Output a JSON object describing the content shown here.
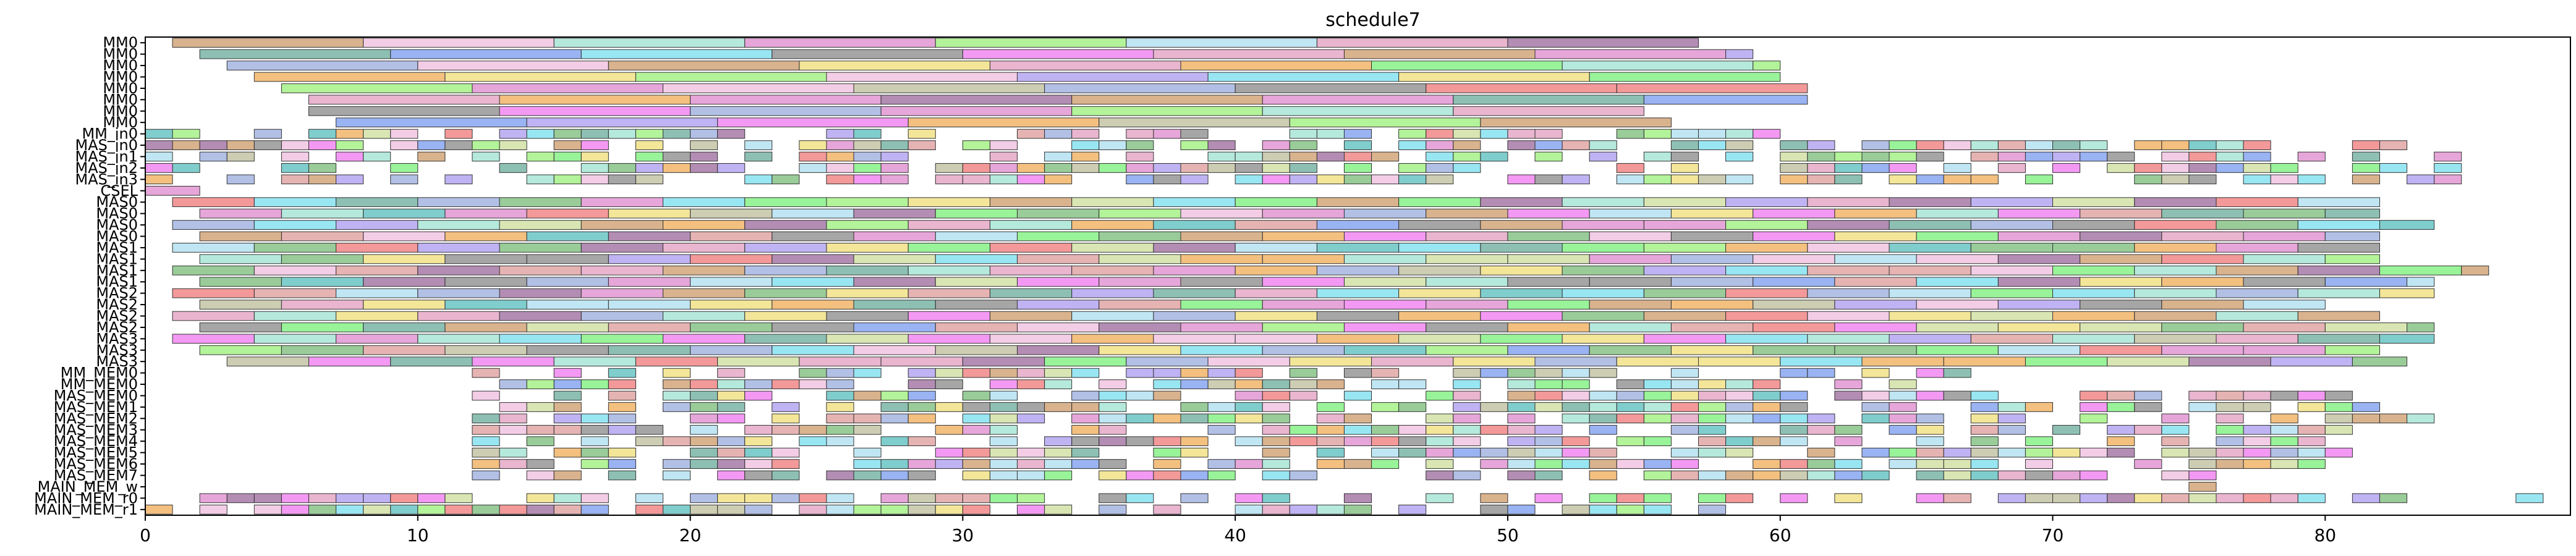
{
  "chart_data": {
    "type": "gantt",
    "title": "schedule7",
    "xlim": [
      0,
      89
    ],
    "xticks": [
      0,
      10,
      20,
      30,
      40,
      50,
      60,
      70,
      80
    ],
    "grid": false,
    "rows": [
      "MM0",
      "MM0",
      "MM0",
      "MM0",
      "MM0",
      "MM0",
      "MM0",
      "MM0",
      "MM_in0",
      "MAS_in0",
      "MAS_in1",
      "MAS_in2",
      "MAS_in3",
      "CSEL",
      "MAS0",
      "MAS0",
      "MAS0",
      "MAS0",
      "MAS1",
      "MAS1",
      "MAS1",
      "MAS1",
      "MAS2",
      "MAS2",
      "MAS2",
      "MAS2",
      "MAS3",
      "MAS3",
      "MAS3",
      "MM_MEM0",
      "MM_MEM0",
      "MAS_MEM0",
      "MAS_MEM1",
      "MAS_MEM2",
      "MAS_MEM3",
      "MAS_MEM4",
      "MAS_MEM5",
      "MAS_MEM6",
      "MAS_MEM7",
      "MAIN_MEM_w",
      "MAIN_MEM_r0",
      "MAIN_MEM_r1"
    ],
    "row_spans": [
      {
        "start": 1,
        "end": 57,
        "step": 7
      },
      {
        "start": 2,
        "end": 59,
        "step": 7
      },
      {
        "start": 3,
        "end": 60,
        "step": 7
      },
      {
        "start": 4,
        "end": 60,
        "step": 7
      },
      {
        "start": 5,
        "end": 61,
        "step": 7
      },
      {
        "start": 6,
        "end": 61,
        "step": 7
      },
      {
        "start": 6,
        "end": 55,
        "step": 7
      },
      {
        "start": 7,
        "end": 56,
        "step": 7
      },
      {
        "start": 0,
        "end": 60,
        "step": 1
      },
      {
        "start": 0,
        "end": 83,
        "step": 1
      },
      {
        "start": 0,
        "end": 85,
        "step": 1
      },
      {
        "start": 0,
        "end": 85,
        "step": 1
      },
      {
        "start": 0,
        "end": 85,
        "step": 1
      },
      {
        "start": 0,
        "end": 2,
        "step": 2
      },
      {
        "start": 1,
        "end": 82,
        "step": 3
      },
      {
        "start": 2,
        "end": 82,
        "step": 3
      },
      {
        "start": 1,
        "end": 84,
        "step": 3
      },
      {
        "start": 2,
        "end": 82,
        "step": 3
      },
      {
        "start": 1,
        "end": 82,
        "step": 3
      },
      {
        "start": 2,
        "end": 82,
        "step": 3
      },
      {
        "start": 1,
        "end": 86,
        "step": 3
      },
      {
        "start": 2,
        "end": 84,
        "step": 3
      },
      {
        "start": 1,
        "end": 84,
        "step": 3
      },
      {
        "start": 2,
        "end": 80,
        "step": 3
      },
      {
        "start": 1,
        "end": 82,
        "step": 3
      },
      {
        "start": 2,
        "end": 84,
        "step": 3
      },
      {
        "start": 1,
        "end": 84,
        "step": 3
      },
      {
        "start": 2,
        "end": 82,
        "step": 3
      },
      {
        "start": 3,
        "end": 83,
        "step": 3
      },
      {
        "start": 12,
        "end": 67,
        "step": 1
      },
      {
        "start": 12,
        "end": 65,
        "step": 1
      },
      {
        "start": 12,
        "end": 82,
        "step": 1
      },
      {
        "start": 12,
        "end": 82,
        "step": 1
      },
      {
        "start": 12,
        "end": 84,
        "step": 1
      },
      {
        "start": 12,
        "end": 81,
        "step": 1
      },
      {
        "start": 12,
        "end": 80,
        "step": 1
      },
      {
        "start": 12,
        "end": 83,
        "step": 1
      },
      {
        "start": 12,
        "end": 80,
        "step": 1
      },
      {
        "start": 12,
        "end": 77,
        "step": 1
      },
      {
        "start": 75,
        "end": 76,
        "step": 1
      },
      {
        "start": 0,
        "end": 89,
        "step": 1
      },
      {
        "start": 0,
        "end": 60,
        "step": 1
      }
    ]
  }
}
